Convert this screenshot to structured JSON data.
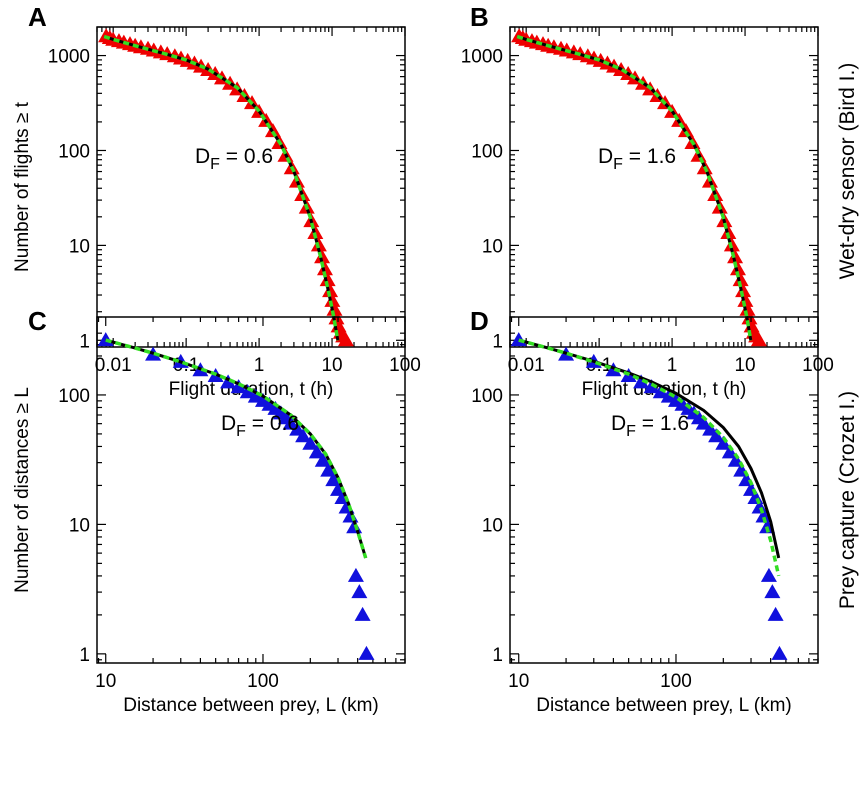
{
  "row_labels": {
    "top": "Wet-dry sensor (Bird I.)",
    "bottom": "Prey capture (Crozet I.)"
  },
  "colors": {
    "triangles_top": "#ee0000",
    "triangles_bottom": "#1010dd",
    "fit_black": "#000000",
    "fit_green": "#33dd22"
  },
  "chart_data": [
    {
      "panel": "A",
      "type": "scatter",
      "scale": "log-log",
      "xlabel": "Flight duration, t (h)",
      "ylabel": "Number of flights ≥ t",
      "xlim": [
        0.006,
        100
      ],
      "ylim": [
        0.85,
        2000
      ],
      "xticks": [
        0.01,
        0.1,
        1,
        10,
        100
      ],
      "xtick_labels": [
        "0.01",
        "0.1",
        "1",
        "10",
        "100"
      ],
      "yticks": [
        1,
        10,
        100,
        1000
      ],
      "ytick_labels": [
        "1",
        "10",
        "100",
        "1000"
      ],
      "annotation": {
        "base": "D",
        "sub": "F",
        "rest": " = 0.6"
      },
      "series": [
        {
          "kind": "markers",
          "color": "#ee0000",
          "x": [
            0.008,
            0.009,
            0.01,
            0.012,
            0.014,
            0.017,
            0.02,
            0.024,
            0.03,
            0.036,
            0.045,
            0.055,
            0.07,
            0.085,
            0.105,
            0.13,
            0.16,
            0.2,
            0.25,
            0.31,
            0.4,
            0.5,
            0.63,
            0.8,
            1.0,
            1.25,
            1.55,
            1.9,
            2.3,
            2.8,
            3.3,
            3.9,
            4.5,
            5.2,
            5.9,
            6.6,
            7.3,
            8.0,
            8.7,
            9.4,
            10.1,
            10.8,
            11.5,
            12.3,
            13.2,
            14.2,
            15.5
          ],
          "y": [
            1600,
            1530,
            1470,
            1420,
            1370,
            1320,
            1270,
            1225,
            1180,
            1130,
            1080,
            1035,
            985,
            930,
            880,
            825,
            765,
            705,
            640,
            575,
            505,
            440,
            375,
            315,
            255,
            205,
            160,
            120,
            88,
            65,
            47,
            34,
            25,
            18,
            13.5,
            10,
            7.5,
            5.6,
            4.3,
            3.3,
            2.6,
            2.1,
            1.7,
            1.4,
            1.2,
            1.1,
            1.0
          ]
        },
        {
          "kind": "line",
          "color": "#000000",
          "dash": "",
          "x": [
            0.0075,
            0.01,
            0.02,
            0.05,
            0.1,
            0.2,
            0.5,
            1,
            2,
            3,
            5,
            7,
            9,
            10.5,
            12
          ],
          "y": [
            1590,
            1480,
            1270,
            1050,
            900,
            720,
            460,
            260,
            115,
            60,
            20,
            7.5,
            3.2,
            1.8,
            1.0
          ]
        },
        {
          "kind": "line",
          "color": "#33dd22",
          "dash": "6 4",
          "x": [
            0.0075,
            0.01,
            0.02,
            0.05,
            0.1,
            0.2,
            0.5,
            1,
            2,
            3,
            5,
            7,
            9,
            10.5,
            12
          ],
          "y": [
            1590,
            1480,
            1270,
            1050,
            900,
            720,
            460,
            260,
            115,
            60,
            20,
            7.5,
            3.2,
            1.8,
            1.0
          ]
        }
      ]
    },
    {
      "panel": "B",
      "type": "scatter",
      "scale": "log-log",
      "xlabel": "Flight duration, t (h)",
      "ylabel": "",
      "xlim": [
        0.006,
        100
      ],
      "ylim": [
        0.85,
        2000
      ],
      "xticks": [
        0.01,
        0.1,
        1,
        10,
        100
      ],
      "xtick_labels": [
        "0.01",
        "0.1",
        "1",
        "10",
        "100"
      ],
      "yticks": [
        1,
        10,
        100,
        1000
      ],
      "ytick_labels": [
        "1",
        "10",
        "100",
        "1000"
      ],
      "annotation": {
        "base": "D",
        "sub": "F",
        "rest": " = 1.6"
      },
      "series": [
        {
          "kind": "markers",
          "color": "#ee0000",
          "x": [
            0.008,
            0.009,
            0.01,
            0.012,
            0.014,
            0.017,
            0.02,
            0.024,
            0.03,
            0.036,
            0.045,
            0.055,
            0.07,
            0.085,
            0.105,
            0.13,
            0.16,
            0.2,
            0.25,
            0.31,
            0.4,
            0.5,
            0.63,
            0.8,
            1.0,
            1.25,
            1.55,
            1.9,
            2.3,
            2.8,
            3.3,
            3.9,
            4.5,
            5.2,
            5.9,
            6.6,
            7.3,
            8.0,
            8.7,
            9.4,
            10.1,
            10.8,
            11.5,
            12.3,
            13.2,
            14.2,
            15.5
          ],
          "y": [
            1600,
            1530,
            1470,
            1420,
            1370,
            1320,
            1270,
            1225,
            1180,
            1130,
            1080,
            1035,
            985,
            930,
            880,
            825,
            765,
            705,
            640,
            575,
            505,
            440,
            375,
            315,
            255,
            205,
            160,
            120,
            88,
            65,
            47,
            34,
            25,
            18,
            13.5,
            10,
            7.5,
            5.6,
            4.3,
            3.3,
            2.6,
            2.1,
            1.7,
            1.4,
            1.2,
            1.1,
            1.0
          ]
        },
        {
          "kind": "line",
          "color": "#000000",
          "dash": "",
          "x": [
            0.0075,
            0.01,
            0.02,
            0.05,
            0.1,
            0.2,
            0.5,
            1,
            2,
            3,
            5,
            7,
            9,
            10.5,
            12
          ],
          "y": [
            1590,
            1480,
            1270,
            1050,
            900,
            720,
            460,
            260,
            115,
            60,
            20,
            7.5,
            3.2,
            1.8,
            1.0
          ]
        },
        {
          "kind": "line",
          "color": "#33dd22",
          "dash": "6 4",
          "x": [
            0.0075,
            0.01,
            0.02,
            0.05,
            0.1,
            0.2,
            0.5,
            1,
            2,
            3,
            5,
            7,
            9,
            10.5,
            12
          ],
          "y": [
            1590,
            1480,
            1270,
            1050,
            900,
            720,
            460,
            260,
            115,
            60,
            20,
            7.5,
            3.2,
            1.8,
            1.0
          ]
        }
      ]
    },
    {
      "panel": "C",
      "type": "scatter",
      "scale": "log-log",
      "xlabel": "Distance between prey, L (km)",
      "ylabel": "Number of distances ≥ L",
      "xlim": [
        8.8,
        800
      ],
      "ylim": [
        0.85,
        400
      ],
      "xticks": [
        10,
        100
      ],
      "xtick_labels": [
        "10",
        "100"
      ],
      "yticks": [
        1,
        10,
        100
      ],
      "ytick_labels": [
        "1",
        "10",
        "100"
      ],
      "annotation": {
        "base": "D",
        "sub": "F",
        "rest": " = 0.6"
      },
      "series": [
        {
          "kind": "markers",
          "color": "#1010dd",
          "x": [
            10,
            20,
            30,
            40,
            50,
            60,
            70,
            80,
            90,
            100,
            110,
            120,
            130,
            140,
            150,
            165,
            180,
            200,
            220,
            240,
            260,
            280,
            300,
            320,
            340,
            360,
            380,
            390,
            410,
            430,
            455
          ],
          "y": [
            265,
            205,
            180,
            155,
            140,
            125,
            115,
            105,
            97,
            90,
            84,
            78,
            72,
            66,
            60,
            54,
            48,
            42,
            36,
            31,
            26,
            22,
            18.5,
            16,
            13.5,
            11.5,
            9.5,
            4.0,
            3.0,
            2.0,
            1.0
          ]
        },
        {
          "kind": "line",
          "color": "#000000",
          "dash": "",
          "x": [
            10,
            15,
            20,
            30,
            50,
            70,
            100,
            150,
            200,
            250,
            300,
            350,
            400,
            450
          ],
          "y": [
            265,
            232,
            210,
            180,
            145,
            122,
            98,
            70,
            50,
            35,
            23,
            14.5,
            8.8,
            5.5
          ]
        },
        {
          "kind": "line",
          "color": "#33dd22",
          "dash": "6 4",
          "x": [
            10,
            15,
            20,
            30,
            50,
            70,
            100,
            150,
            200,
            250,
            300,
            350,
            400,
            450
          ],
          "y": [
            265,
            232,
            210,
            180,
            145,
            122,
            98,
            70,
            50,
            35,
            23,
            14.5,
            8.8,
            5.5
          ]
        }
      ]
    },
    {
      "panel": "D",
      "type": "scatter",
      "scale": "log-log",
      "xlabel": "Distance between prey, L (km)",
      "ylabel": "",
      "xlim": [
        8.8,
        800
      ],
      "ylim": [
        0.85,
        400
      ],
      "xticks": [
        10,
        100
      ],
      "xtick_labels": [
        "10",
        "100"
      ],
      "yticks": [
        1,
        10,
        100
      ],
      "ytick_labels": [
        "1",
        "10",
        "100"
      ],
      "annotation": {
        "base": "D",
        "sub": "F",
        "rest": " = 1.6"
      },
      "series": [
        {
          "kind": "markers",
          "color": "#1010dd",
          "x": [
            10,
            20,
            30,
            40,
            50,
            60,
            70,
            80,
            90,
            100,
            110,
            120,
            130,
            140,
            150,
            165,
            180,
            200,
            220,
            240,
            260,
            280,
            300,
            320,
            340,
            360,
            380,
            390,
            410,
            430,
            455
          ],
          "y": [
            265,
            205,
            180,
            155,
            140,
            125,
            115,
            105,
            97,
            90,
            84,
            78,
            72,
            66,
            60,
            54,
            48,
            42,
            36,
            31,
            26,
            22,
            18.5,
            16,
            13.5,
            11.5,
            9.5,
            4.0,
            3.0,
            2.0,
            1.0
          ]
        },
        {
          "kind": "line",
          "color": "#000000",
          "dash": "",
          "x": [
            10,
            15,
            20,
            30,
            50,
            70,
            100,
            150,
            200,
            250,
            300,
            350,
            400,
            450
          ],
          "y": [
            265,
            232,
            210,
            182,
            148,
            126,
            103,
            76,
            56,
            40,
            27,
            17.5,
            10.5,
            5.5
          ]
        },
        {
          "kind": "line",
          "color": "#33dd22",
          "dash": "6 4",
          "x": [
            10,
            15,
            20,
            30,
            50,
            70,
            100,
            150,
            200,
            250,
            300,
            350,
            400,
            450
          ],
          "y": [
            265,
            232,
            210,
            180,
            145,
            121,
            96,
            67,
            47,
            32,
            21,
            13,
            7.5,
            4.0
          ]
        }
      ]
    }
  ]
}
